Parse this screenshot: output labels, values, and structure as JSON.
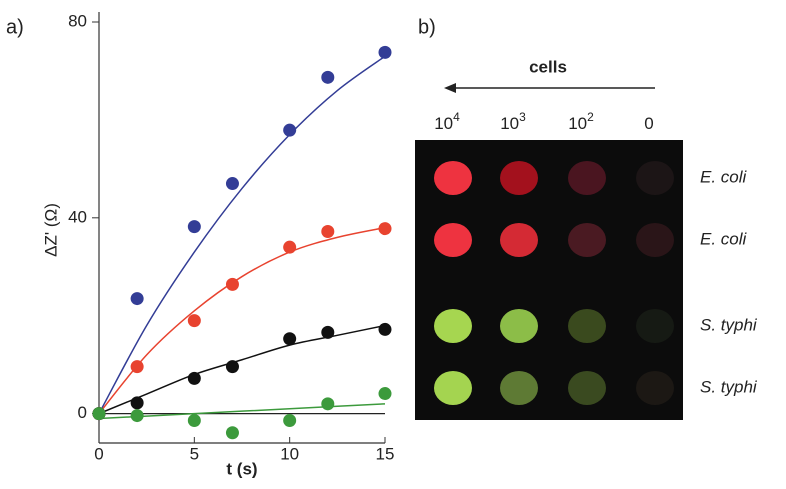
{
  "chart_data": {
    "type": "scatter",
    "panel_label": "a)",
    "xlabel": "t (s)",
    "ylabel": "ΔZ' (Ω)",
    "x": [
      0,
      2,
      5,
      7,
      10,
      12,
      15
    ],
    "series": [
      {
        "color": "#333d96",
        "values": [
          0,
          23.5,
          38.2,
          47,
          57.9,
          68.7,
          73.8
        ]
      },
      {
        "color": "#e8432f",
        "values": [
          0,
          9.6,
          19,
          26.4,
          34,
          37.2,
          37.8
        ]
      },
      {
        "color": "#111111",
        "values": [
          0,
          2.2,
          7.2,
          9.6,
          15.3,
          16.6,
          17.2
        ]
      },
      {
        "color": "#3c9a3c",
        "values": [
          0,
          -0.4,
          -1.4,
          -3.9,
          -1.4,
          2,
          4.1
        ]
      }
    ],
    "fit_x": [
      0,
      2.5,
      5,
      7.5,
      10,
      12.5,
      15
    ],
    "fits": [
      {
        "color": "#333d96",
        "values": [
          0,
          18,
          33,
          46,
          57,
          66,
          73
        ]
      },
      {
        "color": "#e8432f",
        "values": [
          0,
          12,
          21,
          28,
          33,
          36,
          38
        ]
      },
      {
        "color": "#111111",
        "values": [
          0,
          4,
          8,
          11,
          14,
          16,
          18
        ]
      },
      {
        "color": "#3c9a3c",
        "values": [
          -1,
          -0.5,
          0,
          0.5,
          1,
          1.5,
          2
        ]
      }
    ],
    "xlim": [
      0,
      15
    ],
    "xticks": [
      0,
      5,
      10,
      15
    ],
    "ylim": [
      -6,
      80
    ],
    "yticks": [
      0,
      40,
      80
    ]
  },
  "panel_b": {
    "panel_label": "b)",
    "header": "cells",
    "columns": [
      {
        "base": "10",
        "exp": "4"
      },
      {
        "base": "10",
        "exp": "3"
      },
      {
        "base": "10",
        "exp": "2"
      },
      {
        "base": "0"
      }
    ],
    "rows": [
      {
        "label": "E. coli",
        "colors": [
          "#ee3340",
          "#a3111d",
          "#4a1520",
          "#1c1516"
        ]
      },
      {
        "label": "E. coli",
        "colors": [
          "#ee3340",
          "#d42a34",
          "#4a1a22",
          "#2a1518"
        ]
      },
      {
        "label": "S. typhi",
        "colors": [
          "#a6d650",
          "#8cbd48",
          "#3a4a1e",
          "#161a14"
        ]
      },
      {
        "label": "S. typhi",
        "colors": [
          "#a4d450",
          "#5e7a34",
          "#3a4a20",
          "#1c1814"
        ]
      }
    ]
  }
}
